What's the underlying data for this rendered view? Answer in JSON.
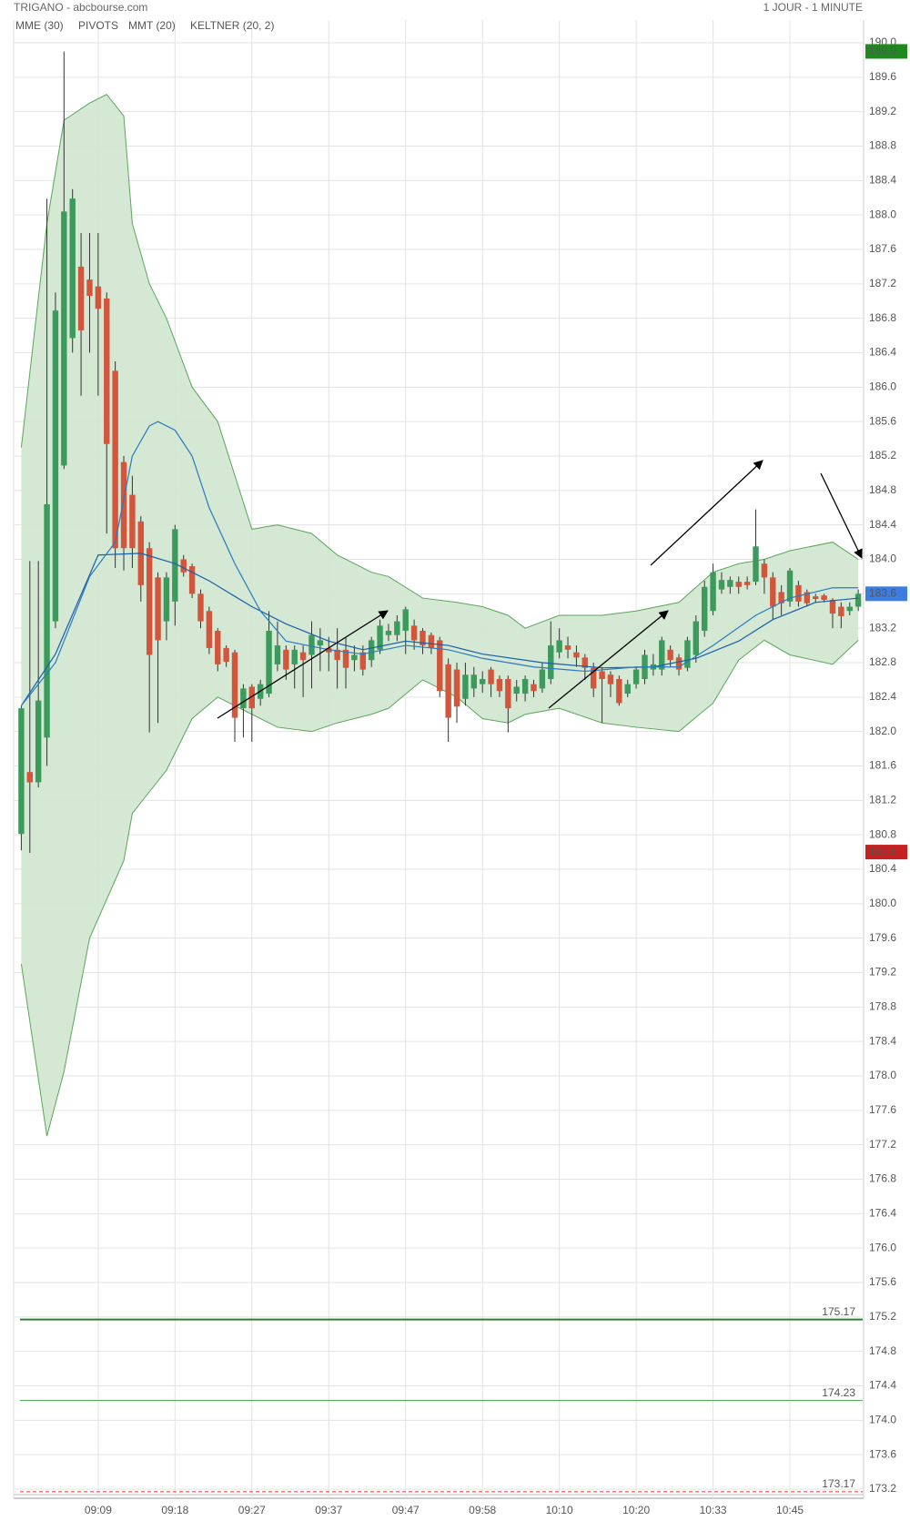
{
  "chart_data": {
    "type": "candlestick",
    "title": "TRIGANO - abcbourse.com",
    "subtitle": "1 JOUR - 1 MINUTE",
    "up_color": "#3b9a5c",
    "down_color": "#d2553c",
    "wick_color": "#333333",
    "grid": true,
    "categories": [
      null,
      null,
      null,
      null,
      null,
      null,
      null,
      null,
      null,
      "09:09",
      null,
      null,
      null,
      null,
      null,
      null,
      null,
      null,
      "09:18",
      null,
      null,
      null,
      null,
      null,
      null,
      null,
      null,
      "09:27",
      null,
      null,
      null,
      null,
      null,
      null,
      null,
      null,
      "09:37",
      null,
      null,
      null,
      null,
      null,
      null,
      null,
      null,
      "09:47",
      null,
      null,
      null,
      null,
      null,
      null,
      null,
      null,
      "09:58",
      null,
      null,
      null,
      null,
      null,
      null,
      null,
      null,
      "10:10",
      null,
      null,
      null,
      null,
      null,
      null,
      null,
      null,
      "10:20",
      null,
      null,
      null,
      null,
      null,
      null,
      null,
      null,
      "10:33",
      null,
      null,
      null,
      null,
      null,
      null,
      null,
      null,
      "10:45",
      null,
      null,
      null,
      null,
      null,
      null,
      null,
      null
    ],
    "open": [
      180.81,
      181.53,
      181.41,
      181.93,
      183.28,
      185.09,
      186.57,
      187.4,
      187.25,
      187.17,
      187.03,
      186.19,
      185.13,
      184.75,
      184.44,
      184.13,
      183.79,
      183.28,
      183.51,
      184.0,
      183.92,
      183.6,
      183.4,
      183.17,
      182.97,
      182.92,
      182.27,
      182.52,
      182.38,
      182.44,
      182.78,
      182.95,
      182.78,
      182.92,
      182.89,
      183.0,
      182.97,
      182.95,
      182.95,
      182.83,
      182.92,
      182.83,
      182.95,
      183.12,
      183.12,
      183.17,
      183.23,
      183.17,
      183.12,
      183.06,
      182.78,
      182.72,
      182.38,
      182.5,
      182.55,
      182.72,
      182.61,
      182.61,
      182.44,
      182.44,
      182.55,
      182.5,
      182.61,
      182.92,
      183.0,
      182.92,
      182.86,
      182.74,
      182.7,
      182.66,
      182.61,
      182.44,
      182.55,
      182.61,
      182.72,
      182.72,
      182.95,
      182.86,
      182.74,
      182.89,
      183.17,
      183.4,
      183.65,
      183.68,
      183.74,
      183.74,
      183.74,
      183.95,
      183.79,
      183.62,
      183.51,
      183.7,
      183.62,
      183.57,
      183.58,
      183.53,
      183.45,
      183.4,
      183.45
    ],
    "high": [
      182.3,
      183.98,
      183.98,
      188.19,
      187.1,
      189.9,
      188.3,
      187.79,
      187.79,
      187.79,
      187.1,
      186.3,
      185.2,
      184.97,
      184.5,
      184.2,
      183.85,
      183.85,
      184.4,
      184.05,
      183.95,
      183.65,
      183.45,
      183.2,
      183.0,
      182.95,
      182.55,
      182.55,
      182.6,
      183.4,
      183.28,
      183.0,
      183.0,
      183.0,
      183.28,
      183.2,
      183.1,
      183.2,
      183.1,
      183.0,
      183.0,
      183.1,
      183.3,
      183.25,
      183.35,
      183.45,
      183.3,
      183.2,
      183.15,
      183.1,
      182.85,
      182.8,
      182.8,
      182.75,
      182.7,
      182.75,
      182.65,
      182.65,
      182.6,
      182.65,
      182.6,
      182.8,
      183.28,
      183.2,
      183.1,
      183.0,
      182.9,
      182.8,
      182.75,
      182.7,
      182.65,
      182.6,
      182.75,
      182.95,
      182.9,
      183.1,
      183.0,
      182.9,
      183.1,
      183.35,
      183.75,
      183.95,
      183.85,
      183.8,
      183.8,
      183.8,
      184.58,
      184.0,
      183.85,
      183.7,
      183.9,
      183.75,
      183.65,
      183.6,
      183.6,
      183.55,
      183.5,
      183.5,
      183.65
    ],
    "low": [
      180.62,
      180.59,
      181.35,
      181.6,
      183.2,
      185.05,
      186.4,
      185.9,
      186.4,
      185.9,
      184.3,
      183.9,
      183.87,
      183.9,
      183.51,
      181.99,
      182.1,
      183.06,
      183.23,
      183.8,
      183.55,
      183.2,
      182.9,
      182.7,
      182.75,
      181.88,
      181.93,
      181.88,
      182.3,
      182.4,
      182.7,
      182.6,
      182.5,
      182.4,
      182.5,
      182.7,
      182.7,
      182.5,
      182.5,
      182.7,
      182.65,
      182.75,
      182.9,
      183.05,
      183.05,
      182.9,
      182.95,
      182.9,
      182.9,
      182.4,
      181.88,
      182.1,
      182.3,
      182.4,
      182.45,
      182.4,
      182.4,
      181.99,
      182.35,
      182.35,
      182.4,
      182.45,
      182.55,
      182.85,
      182.85,
      182.75,
      182.6,
      182.4,
      182.1,
      182.4,
      182.3,
      182.4,
      182.5,
      182.55,
      182.65,
      182.65,
      182.75,
      182.65,
      182.7,
      182.8,
      183.1,
      183.35,
      183.6,
      183.6,
      183.6,
      183.65,
      183.7,
      183.6,
      183.3,
      183.35,
      183.45,
      183.45,
      183.45,
      183.5,
      183.5,
      183.2,
      183.2,
      183.35,
      183.4
    ],
    "close": [
      182.27,
      181.41,
      182.36,
      184.64,
      186.89,
      188.04,
      188.19,
      186.66,
      187.06,
      186.91,
      185.34,
      184.13,
      184.13,
      184.13,
      183.7,
      182.89,
      183.06,
      183.79,
      184.35,
      183.85,
      183.6,
      183.28,
      182.97,
      182.78,
      182.81,
      182.16,
      182.5,
      182.27,
      182.55,
      183.17,
      183.0,
      182.72,
      182.95,
      182.83,
      183.12,
      183.06,
      182.92,
      182.83,
      182.74,
      182.89,
      182.72,
      183.06,
      183.23,
      183.17,
      183.28,
      183.42,
      183.06,
      183.0,
      182.97,
      182.47,
      182.16,
      182.29,
      182.66,
      182.66,
      182.61,
      182.55,
      182.47,
      182.27,
      182.52,
      182.61,
      182.47,
      182.72,
      183.0,
      183.06,
      182.95,
      182.86,
      182.74,
      182.5,
      182.61,
      182.55,
      182.33,
      182.55,
      182.72,
      182.89,
      182.78,
      183.06,
      182.83,
      182.72,
      183.06,
      183.28,
      183.68,
      183.85,
      183.76,
      183.76,
      183.68,
      183.7,
      184.15,
      183.79,
      183.45,
      183.49,
      183.87,
      183.51,
      183.49,
      183.54,
      183.53,
      183.37,
      183.34,
      183.45,
      183.6
    ],
    "indicators": [
      {
        "name": "MME (30)",
        "color": "#1a5fa8",
        "x": [
          0,
          4,
          9,
          14,
          18,
          22,
          27,
          31,
          36,
          40,
          45,
          50,
          54,
          61,
          68,
          74,
          79,
          84,
          88,
          93,
          98
        ],
        "values": [
          182.3,
          182.9,
          184.05,
          184.07,
          183.95,
          183.75,
          183.45,
          183.25,
          183.05,
          182.95,
          183.05,
          183.0,
          182.9,
          182.8,
          182.74,
          182.75,
          182.85,
          183.05,
          183.3,
          183.5,
          183.55
        ]
      },
      {
        "name": "MMT (20)",
        "color": "#2a7bbf",
        "x": [
          0,
          4,
          8,
          11,
          13,
          15,
          16,
          18,
          20,
          22,
          25,
          28,
          31,
          36,
          40,
          45,
          50,
          54,
          60,
          66,
          72,
          77,
          81,
          86,
          90,
          95,
          98
        ],
        "values": [
          182.3,
          182.8,
          183.8,
          184.2,
          185.2,
          185.55,
          185.6,
          185.5,
          185.2,
          184.6,
          183.95,
          183.4,
          183.05,
          182.95,
          182.9,
          183.0,
          182.95,
          182.85,
          182.75,
          182.7,
          182.75,
          182.75,
          183.0,
          183.35,
          183.55,
          183.67,
          183.67
        ]
      }
    ],
    "keltner": {
      "name": "KELTNER (20, 2)",
      "color": "#5aa65a",
      "fill": "#cfe6cf",
      "x": [
        0,
        3,
        5,
        8,
        10,
        12,
        13,
        15,
        17,
        20,
        23,
        27,
        30,
        34,
        37,
        41,
        43,
        47,
        51,
        54,
        57,
        59,
        63,
        68,
        72,
        77,
        81,
        84,
        87,
        90,
        95,
        98
      ],
      "upper": [
        185.3,
        187.9,
        189.1,
        189.3,
        189.4,
        189.15,
        187.9,
        187.2,
        186.8,
        186.0,
        185.6,
        184.35,
        184.4,
        184.3,
        184.05,
        183.85,
        183.8,
        183.55,
        183.5,
        183.45,
        183.35,
        183.2,
        183.35,
        183.35,
        183.4,
        183.5,
        183.85,
        183.95,
        184.0,
        184.1,
        184.2,
        184.0
      ],
      "lower": [
        179.3,
        177.3,
        178.05,
        179.6,
        180.05,
        180.5,
        181.05,
        181.3,
        181.55,
        182.15,
        182.4,
        182.2,
        182.05,
        182.0,
        182.1,
        182.2,
        182.27,
        182.6,
        182.4,
        182.15,
        182.1,
        182.2,
        182.27,
        182.1,
        182.05,
        182.0,
        182.33,
        182.83,
        183.06,
        182.89,
        182.78,
        183.06
      ]
    },
    "pivots": {
      "name": "PIVOTS",
      "levels": [
        175.17,
        174.23,
        173.17
      ],
      "colors": [
        "#2e7d32",
        "#43a047",
        "#e53935"
      ]
    },
    "price_tags": [
      {
        "value": 189.9,
        "color": "#1e8a1e"
      },
      {
        "value": 183.6,
        "color": "#3b7de0"
      },
      {
        "value": 180.6,
        "color": "#c62020"
      }
    ],
    "ylim": [
      173.2,
      190.0
    ],
    "yticks": [
      173.2,
      173.6,
      {
        "value": 174.0,
        "label": "174.0"
      },
      174.4,
      174.8,
      175.2,
      175.6,
      {
        "value": 176.0,
        "label": "176.0"
      },
      176.4,
      176.8,
      177.2,
      177.6,
      {
        "value": 178.0,
        "label": "178.0"
      },
      178.4,
      178.8,
      179.2,
      179.6,
      {
        "value": 180.0,
        "label": "180.0"
      },
      180.4,
      180.8,
      181.2,
      181.6,
      {
        "value": 182.0,
        "label": "182.0"
      },
      182.4,
      182.8,
      183.2,
      183.6,
      {
        "value": 184.0,
        "label": "184.0"
      },
      184.4,
      184.8,
      185.2,
      185.6,
      {
        "value": 186.0,
        "label": "186.0"
      },
      186.4,
      186.8,
      187.2,
      187.6,
      {
        "value": 188.0,
        "label": "188.0"
      },
      188.4,
      188.8,
      189.2,
      189.6,
      {
        "value": 190.0,
        "label": "190.0"
      }
    ]
  }
}
